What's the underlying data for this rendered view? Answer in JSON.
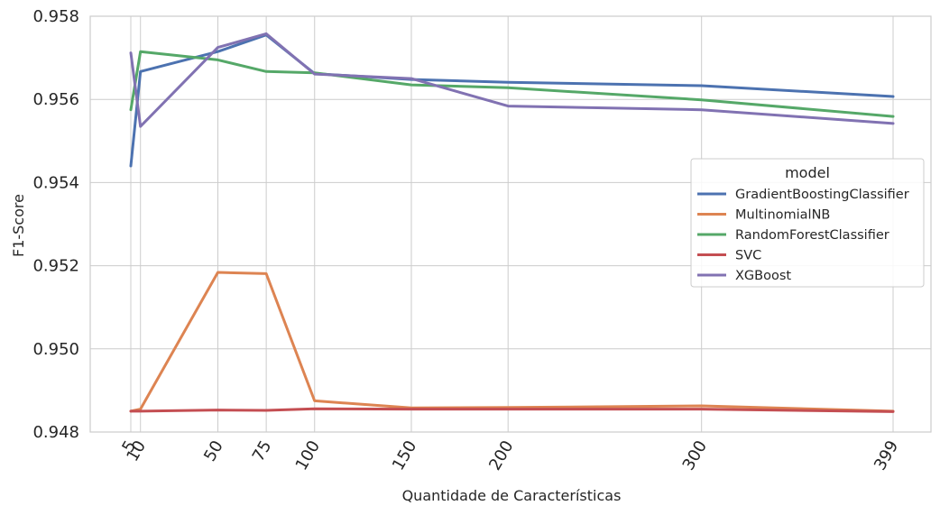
{
  "chart_data": {
    "type": "line",
    "title": "",
    "xlabel": "Quantidade de Características",
    "ylabel": "F1-Score",
    "x": [
      5,
      10,
      50,
      75,
      100,
      150,
      200,
      300,
      399
    ],
    "x_tick_labels": [
      "5",
      "10",
      "50",
      "75",
      "100",
      "150",
      "200",
      "300",
      "399"
    ],
    "y_ticks": [
      0.948,
      0.95,
      0.952,
      0.954,
      0.956,
      0.958
    ],
    "y_tick_labels": [
      "0.948",
      "0.950",
      "0.952",
      "0.954",
      "0.956",
      "0.958"
    ],
    "xlim": [
      0,
      399
    ],
    "ylim": [
      0.948,
      0.958
    ],
    "grid": true,
    "legend": {
      "title": "model",
      "placement": "center-right"
    },
    "series": [
      {
        "name": "GradientBoostingClassifier",
        "color": "#4c72b0",
        "values": [
          0.9544,
          0.95667,
          0.95715,
          0.95755,
          0.95662,
          0.95648,
          0.95641,
          0.95633,
          0.95607
        ]
      },
      {
        "name": "MultinomialNB",
        "color": "#dd8452",
        "values": [
          0.9485,
          0.94855,
          0.95184,
          0.95181,
          0.94875,
          0.94858,
          0.94859,
          0.94863,
          0.9485
        ]
      },
      {
        "name": "RandomForestClassifier",
        "color": "#55a868",
        "values": [
          0.95575,
          0.95715,
          0.95695,
          0.95667,
          0.95664,
          0.95635,
          0.95628,
          0.95599,
          0.95559
        ]
      },
      {
        "name": "SVC",
        "color": "#c44e52",
        "values": [
          0.9485,
          0.9485,
          0.94853,
          0.94852,
          0.94856,
          0.94855,
          0.94855,
          0.94855,
          0.94849
        ]
      },
      {
        "name": "XGBoost",
        "color": "#8172b2",
        "values": [
          0.95712,
          0.95535,
          0.95725,
          0.95758,
          0.95661,
          0.9565,
          0.95584,
          0.95575,
          0.95542
        ]
      }
    ]
  }
}
